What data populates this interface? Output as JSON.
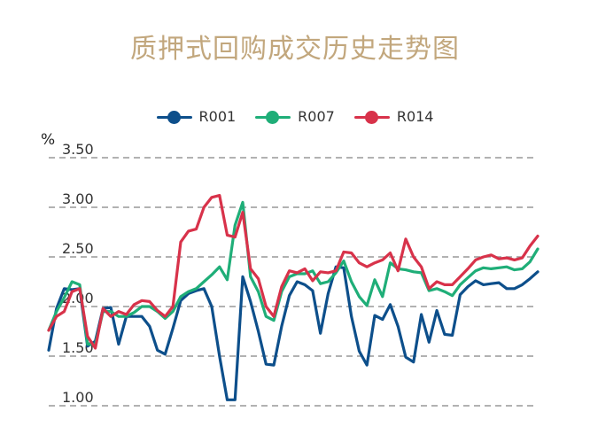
{
  "title": "质押式回购成交历史走势图",
  "chart_data": {
    "type": "line",
    "ylabel": "%",
    "ylim": [
      1.0,
      3.5
    ],
    "yticks": [
      "3.50",
      "3.00",
      "2.50",
      "2.00",
      "1.50",
      "1.00"
    ],
    "grid": "dashed-horizontal",
    "legend_position": "top-center",
    "series": [
      {
        "name": "R001",
        "color": "#0d4f8b",
        "values": [
          1.56,
          1.98,
          2.18,
          2.17,
          2.18,
          1.6,
          1.65,
          1.98,
          1.99,
          1.62,
          1.9,
          1.9,
          1.9,
          1.8,
          1.56,
          1.52,
          1.78,
          2.06,
          2.13,
          2.16,
          2.18,
          2.0,
          1.5,
          1.06,
          1.06,
          2.3,
          2.05,
          1.75,
          1.42,
          1.41,
          1.8,
          2.11,
          2.25,
          2.22,
          2.16,
          1.73,
          2.13,
          2.4,
          2.39,
          1.9,
          1.55,
          1.41,
          1.91,
          1.87,
          2.02,
          1.8,
          1.49,
          1.44,
          1.92,
          1.64,
          1.96,
          1.72,
          1.71,
          2.12,
          2.2,
          2.26,
          2.22,
          2.23,
          2.24,
          2.18,
          2.18,
          2.22,
          2.28,
          2.35
        ]
      },
      {
        "name": "R007",
        "color": "#1fae78",
        "values": [
          1.76,
          1.95,
          2.09,
          2.25,
          2.22,
          1.62,
          1.62,
          1.95,
          1.95,
          1.9,
          1.9,
          1.94,
          2.0,
          2.0,
          1.95,
          1.88,
          1.95,
          2.1,
          2.15,
          2.18,
          2.25,
          2.32,
          2.4,
          2.27,
          2.82,
          3.05,
          2.3,
          2.15,
          1.9,
          1.86,
          2.15,
          2.3,
          2.33,
          2.33,
          2.36,
          2.23,
          2.25,
          2.34,
          2.46,
          2.25,
          2.1,
          2.01,
          2.27,
          2.1,
          2.44,
          2.38,
          2.37,
          2.35,
          2.34,
          2.16,
          2.18,
          2.15,
          2.11,
          2.22,
          2.29,
          2.36,
          2.39,
          2.38,
          2.39,
          2.4,
          2.37,
          2.38,
          2.45,
          2.58
        ]
      },
      {
        "name": "R014",
        "color": "#d8324a",
        "values": [
          1.76,
          1.9,
          1.95,
          2.15,
          2.18,
          1.7,
          1.58,
          1.98,
          1.9,
          1.95,
          1.92,
          2.02,
          2.06,
          2.05,
          1.96,
          1.9,
          2.0,
          2.65,
          2.76,
          2.78,
          3.0,
          3.1,
          3.12,
          2.72,
          2.7,
          2.95,
          2.38,
          2.28,
          2.0,
          1.9,
          2.2,
          2.36,
          2.34,
          2.38,
          2.26,
          2.35,
          2.34,
          2.36,
          2.55,
          2.54,
          2.44,
          2.4,
          2.44,
          2.47,
          2.54,
          2.36,
          2.68,
          2.5,
          2.4,
          2.18,
          2.25,
          2.22,
          2.22,
          2.3,
          2.38,
          2.47,
          2.5,
          2.52,
          2.48,
          2.49,
          2.47,
          2.49,
          2.61,
          2.71
        ]
      }
    ]
  }
}
